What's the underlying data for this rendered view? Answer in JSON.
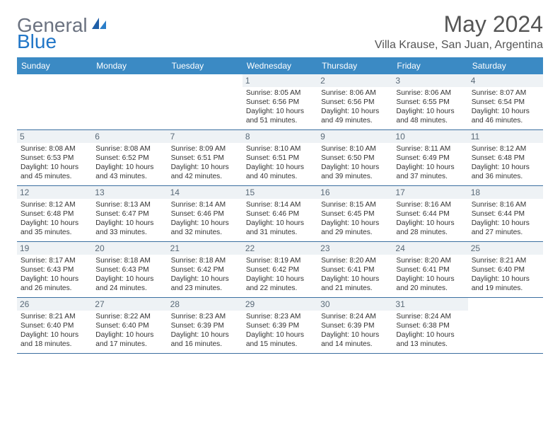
{
  "logo": {
    "text1": "General",
    "text2": "Blue"
  },
  "title": "May 2024",
  "location": "Villa Krause, San Juan, Argentina",
  "colors": {
    "header_bg": "#3b8ac4",
    "header_text": "#ffffff",
    "daynum_bg": "#eef2f5",
    "daynum_text": "#5a6a78",
    "border": "#3b6fa0",
    "logo_gray": "#6b7280",
    "logo_blue": "#2176c7"
  },
  "days": [
    "Sunday",
    "Monday",
    "Tuesday",
    "Wednesday",
    "Thursday",
    "Friday",
    "Saturday"
  ],
  "weeks": [
    [
      null,
      null,
      null,
      {
        "n": "1",
        "sr": "8:05 AM",
        "ss": "6:56 PM",
        "dl": "10 hours and 51 minutes."
      },
      {
        "n": "2",
        "sr": "8:06 AM",
        "ss": "6:56 PM",
        "dl": "10 hours and 49 minutes."
      },
      {
        "n": "3",
        "sr": "8:06 AM",
        "ss": "6:55 PM",
        "dl": "10 hours and 48 minutes."
      },
      {
        "n": "4",
        "sr": "8:07 AM",
        "ss": "6:54 PM",
        "dl": "10 hours and 46 minutes."
      }
    ],
    [
      {
        "n": "5",
        "sr": "8:08 AM",
        "ss": "6:53 PM",
        "dl": "10 hours and 45 minutes."
      },
      {
        "n": "6",
        "sr": "8:08 AM",
        "ss": "6:52 PM",
        "dl": "10 hours and 43 minutes."
      },
      {
        "n": "7",
        "sr": "8:09 AM",
        "ss": "6:51 PM",
        "dl": "10 hours and 42 minutes."
      },
      {
        "n": "8",
        "sr": "8:10 AM",
        "ss": "6:51 PM",
        "dl": "10 hours and 40 minutes."
      },
      {
        "n": "9",
        "sr": "8:10 AM",
        "ss": "6:50 PM",
        "dl": "10 hours and 39 minutes."
      },
      {
        "n": "10",
        "sr": "8:11 AM",
        "ss": "6:49 PM",
        "dl": "10 hours and 37 minutes."
      },
      {
        "n": "11",
        "sr": "8:12 AM",
        "ss": "6:48 PM",
        "dl": "10 hours and 36 minutes."
      }
    ],
    [
      {
        "n": "12",
        "sr": "8:12 AM",
        "ss": "6:48 PM",
        "dl": "10 hours and 35 minutes."
      },
      {
        "n": "13",
        "sr": "8:13 AM",
        "ss": "6:47 PM",
        "dl": "10 hours and 33 minutes."
      },
      {
        "n": "14",
        "sr": "8:14 AM",
        "ss": "6:46 PM",
        "dl": "10 hours and 32 minutes."
      },
      {
        "n": "15",
        "sr": "8:14 AM",
        "ss": "6:46 PM",
        "dl": "10 hours and 31 minutes."
      },
      {
        "n": "16",
        "sr": "8:15 AM",
        "ss": "6:45 PM",
        "dl": "10 hours and 29 minutes."
      },
      {
        "n": "17",
        "sr": "8:16 AM",
        "ss": "6:44 PM",
        "dl": "10 hours and 28 minutes."
      },
      {
        "n": "18",
        "sr": "8:16 AM",
        "ss": "6:44 PM",
        "dl": "10 hours and 27 minutes."
      }
    ],
    [
      {
        "n": "19",
        "sr": "8:17 AM",
        "ss": "6:43 PM",
        "dl": "10 hours and 26 minutes."
      },
      {
        "n": "20",
        "sr": "8:18 AM",
        "ss": "6:43 PM",
        "dl": "10 hours and 24 minutes."
      },
      {
        "n": "21",
        "sr": "8:18 AM",
        "ss": "6:42 PM",
        "dl": "10 hours and 23 minutes."
      },
      {
        "n": "22",
        "sr": "8:19 AM",
        "ss": "6:42 PM",
        "dl": "10 hours and 22 minutes."
      },
      {
        "n": "23",
        "sr": "8:20 AM",
        "ss": "6:41 PM",
        "dl": "10 hours and 21 minutes."
      },
      {
        "n": "24",
        "sr": "8:20 AM",
        "ss": "6:41 PM",
        "dl": "10 hours and 20 minutes."
      },
      {
        "n": "25",
        "sr": "8:21 AM",
        "ss": "6:40 PM",
        "dl": "10 hours and 19 minutes."
      }
    ],
    [
      {
        "n": "26",
        "sr": "8:21 AM",
        "ss": "6:40 PM",
        "dl": "10 hours and 18 minutes."
      },
      {
        "n": "27",
        "sr": "8:22 AM",
        "ss": "6:40 PM",
        "dl": "10 hours and 17 minutes."
      },
      {
        "n": "28",
        "sr": "8:23 AM",
        "ss": "6:39 PM",
        "dl": "10 hours and 16 minutes."
      },
      {
        "n": "29",
        "sr": "8:23 AM",
        "ss": "6:39 PM",
        "dl": "10 hours and 15 minutes."
      },
      {
        "n": "30",
        "sr": "8:24 AM",
        "ss": "6:39 PM",
        "dl": "10 hours and 14 minutes."
      },
      {
        "n": "31",
        "sr": "8:24 AM",
        "ss": "6:38 PM",
        "dl": "10 hours and 13 minutes."
      },
      null
    ]
  ],
  "labels": {
    "sunrise": "Sunrise:",
    "sunset": "Sunset:",
    "daylight": "Daylight:"
  }
}
